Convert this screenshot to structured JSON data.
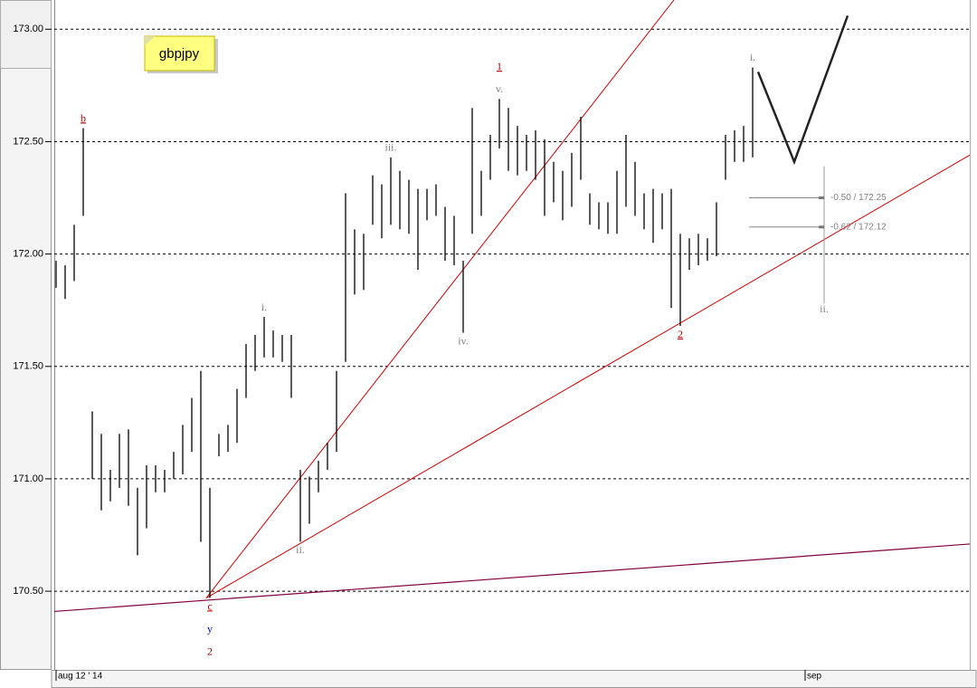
{
  "chart_data": {
    "type": "ohlc",
    "symbol": "gbpjpy",
    "color": "#000000",
    "grid": true,
    "xlim": [
      -0.2,
      101
    ],
    "ylim": [
      170.15,
      173.13
    ],
    "yticks": [
      {
        "value": 170.5,
        "label": "170.50"
      },
      {
        "value": 171,
        "label": "171.00"
      },
      {
        "value": 171.5,
        "label": "171.50"
      },
      {
        "value": 172,
        "label": "172.00"
      },
      {
        "value": 172.5,
        "label": "172.50"
      },
      {
        "value": 173,
        "label": "173.00"
      }
    ],
    "xticks": [
      {
        "value": 0,
        "label": "aug 12 ' 14"
      },
      {
        "value": 82.8,
        "label": "sep"
      }
    ],
    "high": [
      171.97,
      171.95,
      172.13,
      172.56,
      171.3,
      171.2,
      171.04,
      171.2,
      171.22,
      170.96,
      171.06,
      171.06,
      171.04,
      171.12,
      171.24,
      171.36,
      171.48,
      170.96,
      171.2,
      171.24,
      171.4,
      171.6,
      171.64,
      171.72,
      171.66,
      171.64,
      171.64,
      171.04,
      171.01,
      171.08,
      171.16,
      171.48,
      172.27,
      172.11,
      172.09,
      172.35,
      172.31,
      172.43,
      172.37,
      172.33,
      172.29,
      172.29,
      172.31,
      172.21,
      172.17,
      171.97,
      172.65,
      172.37,
      172.53,
      172.69,
      172.65,
      172.57,
      172.53,
      172.55,
      172.51,
      172.41,
      172.37,
      172.45,
      172.61,
      172.27,
      172.23,
      172.23,
      172.37,
      172.53,
      172.41,
      172.27,
      172.29,
      172.27,
      172.29,
      172.09,
      172.07,
      172.09,
      172.07,
      172.23,
      172.53,
      172.55,
      172.57,
      172.83
    ],
    "low": [
      171.85,
      171.8,
      171.88,
      172.17,
      171.0,
      170.86,
      170.9,
      170.96,
      170.88,
      170.66,
      170.78,
      170.94,
      170.94,
      171.0,
      171.02,
      171.12,
      170.72,
      170.47,
      171.1,
      171.12,
      171.16,
      171.36,
      171.48,
      171.54,
      171.54,
      171.52,
      171.36,
      170.72,
      170.8,
      170.94,
      171.04,
      171.12,
      171.52,
      171.82,
      171.84,
      172.13,
      172.07,
      172.13,
      172.11,
      172.09,
      171.93,
      172.15,
      172.17,
      171.97,
      171.95,
      171.65,
      172.09,
      172.17,
      172.33,
      172.47,
      172.37,
      172.35,
      172.37,
      172.33,
      172.17,
      172.23,
      172.15,
      172.21,
      172.33,
      172.13,
      172.11,
      172.09,
      172.09,
      172.21,
      172.17,
      172.11,
      172.05,
      172.11,
      171.76,
      171.68,
      171.93,
      171.95,
      171.97,
      171.99,
      172.33,
      172.41,
      172.41,
      172.43
    ],
    "annotations": [
      {
        "bar": 3,
        "side": "above",
        "labels": [
          {
            "text": "b",
            "color": "#c00000",
            "underline": true
          }
        ]
      },
      {
        "bar": 17,
        "side": "below",
        "labels": [
          {
            "text": "c",
            "color": "#c00000",
            "underline": true
          },
          {
            "text": "y",
            "color": "#0000cc"
          },
          {
            "text": "2",
            "color": "#8b0000"
          }
        ]
      },
      {
        "bar": 23,
        "side": "above",
        "labels": [
          {
            "text": "i.",
            "color": "#808080"
          }
        ]
      },
      {
        "bar": 27,
        "side": "below",
        "labels": [
          {
            "text": "ii.",
            "color": "#808080"
          }
        ]
      },
      {
        "bar": 37,
        "side": "above",
        "labels": [
          {
            "text": "iii.",
            "color": "#808080"
          }
        ]
      },
      {
        "bar": 45,
        "side": "below",
        "labels": [
          {
            "text": "iv.",
            "color": "#808080"
          }
        ]
      },
      {
        "bar": 49,
        "side": "above",
        "labels": [
          {
            "text": "v.",
            "color": "#808080"
          },
          {
            "text": "1",
            "color": "#c00000",
            "underline": true
          }
        ]
      },
      {
        "bar": 69,
        "side": "below",
        "labels": [
          {
            "text": "2",
            "color": "#c00000",
            "underline": true
          }
        ]
      },
      {
        "bar": 77,
        "side": "above",
        "labels": [
          {
            "text": "i.",
            "color": "#808080"
          }
        ]
      }
    ],
    "lines": [
      {
        "color": "#d00000",
        "width": 1,
        "x": [
          16.6,
          68.3
        ],
        "y": [
          170.47,
          173.13
        ]
      },
      {
        "color": "#d00000",
        "width": 1,
        "x": [
          16.6,
          101
        ],
        "y": [
          170.47,
          172.44
        ]
      },
      {
        "color": "#800040",
        "width": 1.2,
        "x": [
          -0.2,
          101
        ],
        "y": [
          170.41,
          170.71
        ]
      },
      {
        "color": "#222222",
        "width": 2.5,
        "x": [
          77.6,
          81.6,
          87.5
        ],
        "y": [
          172.81,
          172.41,
          173.06
        ]
      }
    ],
    "fib": {
      "x": 84.9,
      "x_start": 76.6,
      "range": [
        172.39,
        171.78
      ],
      "label": "ii.",
      "levels": [
        {
          "value": 172.25,
          "label": "-0.50 / 172.25"
        },
        {
          "value": 172.12,
          "label": "-0.62 / 172.12"
        }
      ]
    }
  }
}
